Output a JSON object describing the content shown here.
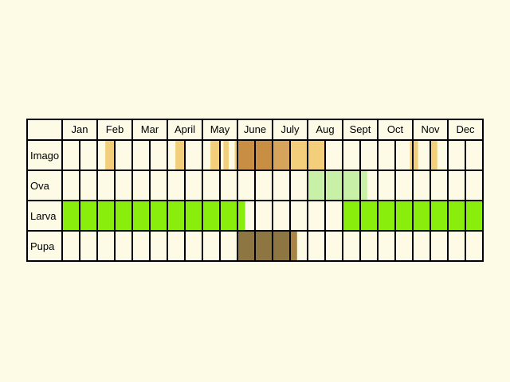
{
  "chart_data": {
    "type": "table",
    "months": [
      "Jan",
      "Feb",
      "Mar",
      "Apr",
      "May",
      "June",
      "July",
      "Aug",
      "Sept",
      "Oct",
      "Nov",
      "Dec"
    ],
    "months_display": [
      "Jan",
      "Feb",
      "Mar",
      "April",
      "May",
      "June",
      "July",
      "Aug",
      "Sept",
      "Oct",
      "Nov",
      "Dec"
    ],
    "stages": [
      {
        "name": "Imago",
        "occurrence": [
          {
            "start": 1.23,
            "end": 1.5,
            "level": "light"
          },
          {
            "start": 3.23,
            "end": 3.5,
            "level": "light"
          },
          {
            "start": 4.23,
            "end": 4.5,
            "level": "light"
          },
          {
            "start": 4.6,
            "end": 4.75,
            "level": "light"
          },
          {
            "start": 4.92,
            "end": 5.0,
            "level": "light"
          },
          {
            "start": 5.0,
            "end": 6.0,
            "level": "dark"
          },
          {
            "start": 6.0,
            "end": 6.5,
            "level": "medium"
          },
          {
            "start": 6.5,
            "end": 7.5,
            "level": "light"
          },
          {
            "start": 9.92,
            "end": 10.15,
            "level": "light"
          },
          {
            "start": 10.5,
            "end": 10.7,
            "level": "light"
          }
        ]
      },
      {
        "name": "Ova",
        "occurrence": [
          {
            "start": 7.0,
            "end": 8.7,
            "level": "light"
          }
        ]
      },
      {
        "name": "Larva",
        "occurrence": [
          {
            "start": 0.0,
            "end": 5.22,
            "level": "full"
          },
          {
            "start": 8.0,
            "end": 12.0,
            "level": "full"
          }
        ]
      },
      {
        "name": "Pupa",
        "occurrence": [
          {
            "start": 5.0,
            "end": 6.5,
            "level": "full"
          },
          {
            "start": 6.5,
            "end": 6.7,
            "level": "medium"
          }
        ]
      }
    ],
    "colors": {
      "background": "#fdfbe6",
      "cell": "#fdfbe6",
      "grid": "#000000",
      "Imago": {
        "light": "#f3cf7c",
        "medium": "#d6a55b",
        "dark": "#c78e44"
      },
      "Ova": {
        "light": "#c8f0a6"
      },
      "Larva": {
        "full": "#8aee0c"
      },
      "Pupa": {
        "full": "#8e7643",
        "medium": "#a88447"
      }
    },
    "columns_per_month": 2
  }
}
